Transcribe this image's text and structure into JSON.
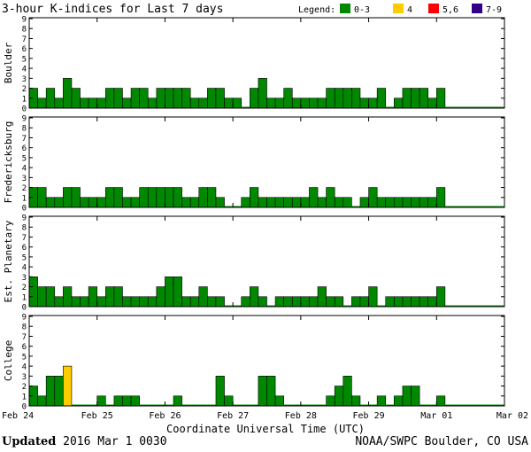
{
  "chart_data": {
    "type": "bar",
    "title": "3-hour K-indices for Last 7 days",
    "legend": {
      "label": "Legend:",
      "items": [
        {
          "label": "0-3",
          "color": "#008800"
        },
        {
          "label": "4",
          "color": "#ffcc00"
        },
        {
          "label": "5,6",
          "color": "#ff0000"
        },
        {
          "label": "7-9",
          "color": "#330088"
        }
      ],
      "placement": "top-right"
    },
    "xlabel": "Coordinate Universal Time (UTC)",
    "x_ticks": [
      "Feb 24",
      "Feb 25",
      "Feb 26",
      "Feb 27",
      "Feb 28",
      "Feb 29",
      "Mar 01",
      "Mar 02"
    ],
    "ylim": [
      0,
      9
    ],
    "y_ticks": [
      "0",
      "1",
      "2",
      "3",
      "4",
      "5",
      "6",
      "7",
      "8",
      "9"
    ],
    "grid": false,
    "bins_per_day": 8,
    "series": [
      {
        "name": "Boulder",
        "values": [
          2,
          1,
          2,
          1,
          3,
          2,
          1,
          1,
          1,
          2,
          2,
          1,
          2,
          2,
          1,
          2,
          2,
          2,
          2,
          1,
          1,
          2,
          2,
          1,
          1,
          0,
          2,
          3,
          1,
          1,
          2,
          1,
          1,
          1,
          1,
          2,
          2,
          2,
          2,
          1,
          1,
          2,
          0,
          1,
          2,
          2,
          2,
          1,
          2
        ]
      },
      {
        "name": "Fredericksburg",
        "values": [
          2,
          2,
          1,
          1,
          2,
          2,
          1,
          1,
          1,
          2,
          2,
          1,
          1,
          2,
          2,
          2,
          2,
          2,
          1,
          1,
          2,
          2,
          1,
          0,
          0,
          1,
          2,
          1,
          1,
          1,
          1,
          1,
          1,
          2,
          1,
          2,
          1,
          1,
          0,
          1,
          2,
          1,
          1,
          1,
          1,
          1,
          1,
          1,
          2
        ]
      },
      {
        "name": "Est. Planetary",
        "values": [
          3,
          2,
          2,
          1,
          2,
          1,
          1,
          2,
          1,
          2,
          2,
          1,
          1,
          1,
          1,
          2,
          3,
          3,
          1,
          1,
          2,
          1,
          1,
          0,
          0,
          1,
          2,
          1,
          0,
          1,
          1,
          1,
          1,
          1,
          2,
          1,
          1,
          0,
          1,
          1,
          2,
          0,
          1,
          1,
          1,
          1,
          1,
          1,
          2
        ]
      },
      {
        "name": "College",
        "values": [
          2,
          1,
          3,
          3,
          4,
          0,
          0,
          0,
          1,
          0,
          1,
          1,
          1,
          0,
          0,
          0,
          0,
          1,
          0,
          0,
          0,
          0,
          3,
          1,
          0,
          0,
          0,
          3,
          3,
          1,
          0,
          0,
          0,
          0,
          0,
          1,
          2,
          3,
          1,
          0,
          0,
          1,
          0,
          1,
          2,
          2,
          0,
          0,
          1
        ]
      }
    ]
  },
  "footer": {
    "updated_label": "Updated",
    "updated_value": "2016 Mar  1 0030",
    "credit": "NOAA/SWPC Boulder, CO USA"
  }
}
